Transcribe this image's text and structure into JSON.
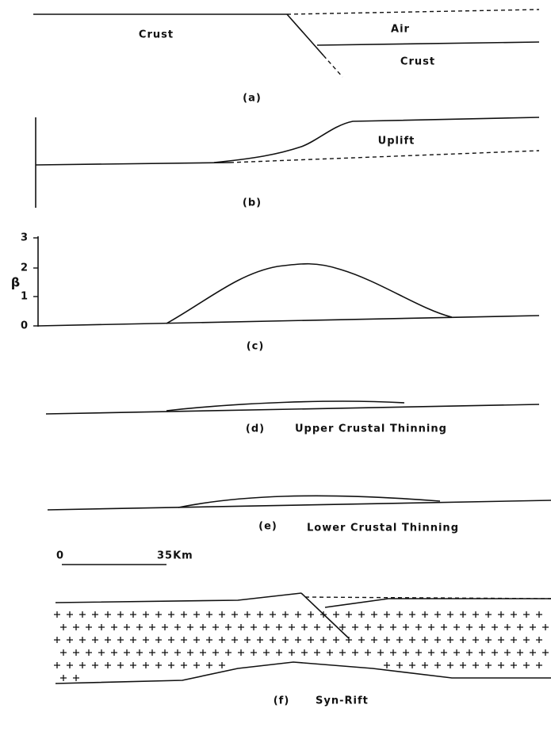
{
  "panel_a": {
    "label": "(a)",
    "crust_left": "Crust",
    "air": "Air",
    "crust_right": "Crust"
  },
  "panel_b": {
    "label": "(b)",
    "uplift": "Uplift"
  },
  "panel_c": {
    "label": "(c)",
    "axis_label": "β",
    "yticks": [
      "0",
      "1",
      "2",
      "3"
    ]
  },
  "panel_d": {
    "label": "(d)",
    "title": "Upper Crustal Thinning"
  },
  "panel_e": {
    "label": "(e)",
    "title": "Lower Crustal Thinning"
  },
  "panel_f": {
    "label": "(f)",
    "title": "Syn-Rift",
    "scale_start": "0",
    "scale_end": "35Km"
  }
}
